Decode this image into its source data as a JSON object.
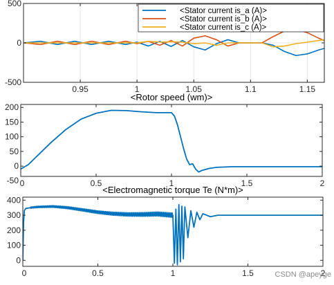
{
  "watermark": "CSDN @apeyge",
  "colors": {
    "blue": "#0072BD",
    "orange": "#D95319",
    "yellow": "#EDB120",
    "axis": "#262626",
    "grid": "#E6E6E6"
  },
  "chart_data": [
    {
      "type": "line",
      "title": "",
      "xlim": [
        0.9,
        1.165
      ],
      "ylim": [
        -500,
        500
      ],
      "xticks": [
        0.95,
        1,
        1.05,
        1.1,
        1.15
      ],
      "xticklabels": [
        "0.95",
        "1",
        "1.05",
        "1.1",
        "1.15"
      ],
      "yticks": [
        -500,
        0,
        500
      ],
      "yticklabels": [
        "-500",
        "0",
        "500"
      ],
      "grid": true,
      "legend_position": "top-right",
      "series": [
        {
          "name": "<Stator current is_a (A)>",
          "color": "#0072BD",
          "x": [
            0.9,
            0.915,
            0.93,
            0.945,
            0.96,
            0.975,
            0.99,
            1.0,
            1.01,
            1.02,
            1.03,
            1.04,
            1.05,
            1.06,
            1.07,
            1.08,
            1.09,
            1.1,
            1.11,
            1.12,
            1.13,
            1.14,
            1.15,
            1.16,
            1.165
          ],
          "y": [
            0,
            20,
            -20,
            20,
            -20,
            20,
            -20,
            10,
            -40,
            20,
            -45,
            30,
            -50,
            -90,
            -10,
            40,
            0,
            0,
            0,
            -30,
            -110,
            -160,
            -140,
            -90,
            -70
          ]
        },
        {
          "name": "<Stator current is_b (A)>",
          "color": "#D95319",
          "x": [
            0.9,
            0.915,
            0.93,
            0.945,
            0.96,
            0.975,
            0.99,
            1.0,
            1.01,
            1.02,
            1.03,
            1.04,
            1.05,
            1.06,
            1.07,
            1.08,
            1.09,
            1.1,
            1.11,
            1.12,
            1.13,
            1.14,
            1.15,
            1.16,
            1.165
          ],
          "y": [
            0,
            -20,
            20,
            -20,
            20,
            -20,
            20,
            -10,
            20,
            -30,
            30,
            -40,
            60,
            90,
            40,
            -40,
            0,
            0,
            0,
            80,
            150,
            170,
            130,
            60,
            30
          ]
        },
        {
          "name": "<Stator current is_c (A)>",
          "color": "#EDB120",
          "x": [
            0.9,
            0.915,
            0.93,
            0.945,
            0.96,
            0.975,
            0.99,
            1.0,
            1.01,
            1.02,
            1.03,
            1.04,
            1.05,
            1.06,
            1.07,
            1.08,
            1.09,
            1.1,
            1.11,
            1.12,
            1.13,
            1.14,
            1.15,
            1.16,
            1.165
          ],
          "y": [
            0,
            0,
            0,
            0,
            0,
            0,
            0,
            0,
            20,
            10,
            15,
            10,
            -10,
            0,
            -30,
            0,
            0,
            0,
            0,
            -50,
            -40,
            -10,
            10,
            30,
            40
          ]
        }
      ]
    },
    {
      "type": "line",
      "title": "<Rotor speed (wm)>",
      "xlim": [
        0,
        2
      ],
      "ylim": [
        -35,
        210
      ],
      "xticks": [
        0,
        0.5,
        1,
        1.5,
        2
      ],
      "xticklabels": [
        "0",
        "0.5",
        "1",
        "1.5",
        "2"
      ],
      "yticks": [
        -50,
        0,
        50,
        100,
        150,
        200
      ],
      "yticklabels": [
        "-50",
        "0",
        "50",
        "100",
        "150",
        "200"
      ],
      "grid": false,
      "series": [
        {
          "color": "#0072BD",
          "x": [
            0,
            0.05,
            0.1,
            0.2,
            0.3,
            0.4,
            0.5,
            0.6,
            0.7,
            0.8,
            0.9,
            1.0,
            1.02,
            1.04,
            1.06,
            1.08,
            1.1,
            1.12,
            1.14,
            1.16,
            1.18,
            1.2,
            1.25,
            1.3,
            1.4,
            1.5,
            1.7,
            2.0
          ],
          "y": [
            -10,
            5,
            30,
            80,
            125,
            160,
            180,
            190,
            189,
            185,
            182,
            182,
            170,
            140,
            100,
            60,
            25,
            5,
            8,
            -10,
            -20,
            -15,
            -8,
            -4,
            -2,
            -2,
            -2,
            -2
          ]
        }
      ]
    },
    {
      "type": "line",
      "title": "<Electromagnetic torque Te (N*m)>",
      "xlim": [
        0,
        2
      ],
      "ylim": [
        -40,
        420
      ],
      "xticks": [
        0,
        0.5,
        1,
        1.5,
        2
      ],
      "xticklabels": [
        "0",
        "0.5",
        "1",
        "1.5",
        "2"
      ],
      "yticks": [
        0,
        100,
        200,
        300,
        400
      ],
      "yticklabels": [
        "0",
        "100",
        "200",
        "300",
        "400"
      ],
      "grid": false,
      "series": [
        {
          "color": "#0072BD",
          "x": [
            0,
            0.005,
            0.01,
            0.02,
            0.05,
            0.1,
            0.2,
            0.3,
            0.4,
            0.5,
            0.6,
            0.7,
            0.8,
            0.9,
            1.0,
            1.01,
            1.02,
            1.03,
            1.04,
            1.05,
            1.06,
            1.07,
            1.08,
            1.1,
            1.12,
            1.14,
            1.16,
            1.18,
            1.2,
            1.25,
            1.3,
            1.35,
            1.4,
            1.5,
            1.7,
            2.0
          ],
          "y": [
            0,
            250,
            330,
            345,
            350,
            355,
            358,
            350,
            335,
            320,
            310,
            305,
            305,
            308,
            300,
            -20,
            340,
            -30,
            370,
            -10,
            360,
            10,
            355,
            150,
            330,
            220,
            320,
            270,
            310,
            290,
            300,
            300,
            300,
            300,
            300,
            300
          ],
          "band": {
            "x_start": 0.05,
            "x_end": 1.0,
            "amplitude": 18
          }
        }
      ]
    }
  ]
}
